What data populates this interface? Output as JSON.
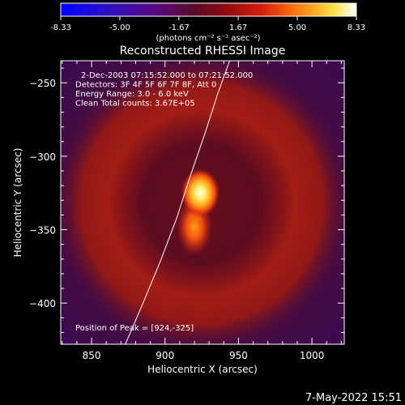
{
  "colorbar": {
    "ticks": [
      "-8.33",
      "-5.00",
      "-1.67",
      "1.67",
      "5.00",
      "8.33"
    ],
    "unit_label": "(photons cm⁻² s⁻¹ asec⁻²)",
    "range": [
      -8.33,
      8.33
    ]
  },
  "chart_data": {
    "type": "heatmap",
    "title": "Reconstructed RHESSI Image",
    "xlabel": "Heliocentric X (arcsec)",
    "ylabel": "Heliocentric Y (arcsec)",
    "xlim": [
      829,
      1022
    ],
    "ylim": [
      -428,
      -235
    ],
    "xticks": [
      850,
      900,
      950,
      1000
    ],
    "yticks": [
      -250,
      -300,
      -350,
      -400
    ],
    "annotations": [
      "2-Dec-2003 07:15:52.000 to 07:21:52.000",
      "Detectors: 3F 4F 5F 6F 7F 8F, Att 0",
      "Energy Range: 3.0 - 6.0 keV",
      "Clean     Total counts: 3.67E+05"
    ],
    "peak_label": "Position of Peak = [924,-325]",
    "peak": {
      "x": 924,
      "y": -325
    },
    "secondary_source": {
      "x": 920,
      "y": -348
    },
    "ring": {
      "x": 925,
      "y": -332,
      "radius_arcsec": 80
    },
    "limb_curve": [
      [
        873,
        -428
      ],
      [
        885,
        -400
      ],
      [
        897,
        -371
      ],
      [
        908,
        -342
      ],
      [
        917,
        -314
      ],
      [
        927,
        -285
      ],
      [
        936,
        -257
      ],
      [
        944,
        -235
      ]
    ]
  },
  "footer": {
    "date": "7-May-2022 15:51"
  }
}
